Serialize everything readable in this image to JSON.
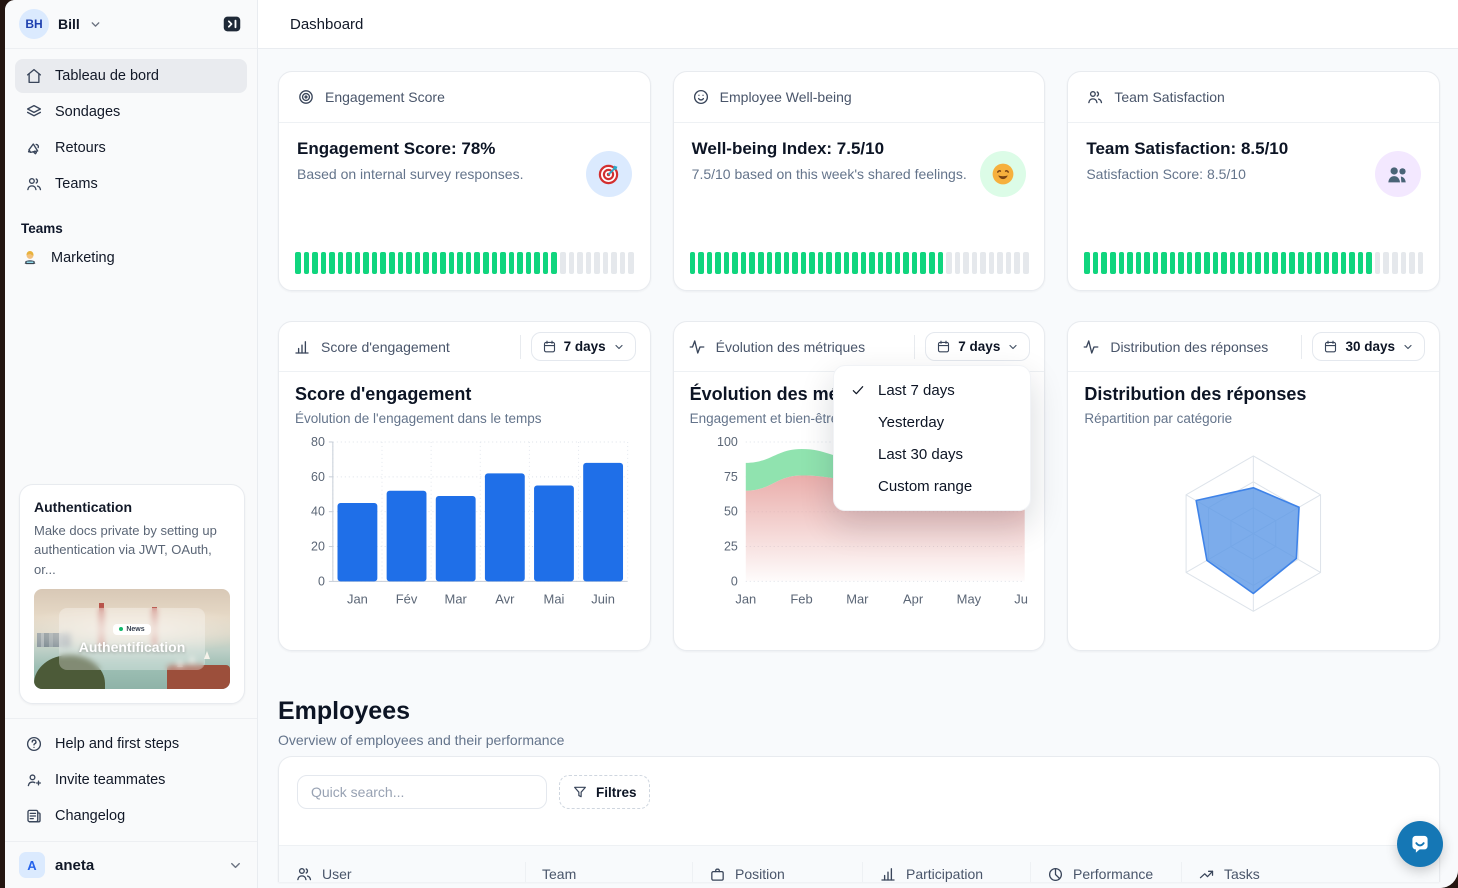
{
  "topbar": {
    "title": "Dashboard"
  },
  "sidebar": {
    "user": {
      "initials": "BH",
      "name": "Bill"
    },
    "nav": [
      {
        "icon": "home-icon",
        "label": "Tableau de bord",
        "active": true
      },
      {
        "icon": "layers-icon",
        "label": "Sondages",
        "active": false
      },
      {
        "icon": "megaphone-icon",
        "label": "Retours",
        "active": false
      },
      {
        "icon": "users-icon",
        "label": "Teams",
        "active": false
      }
    ],
    "section_label": "Teams",
    "teams": [
      {
        "icon": "technologist-emoji",
        "label": "Marketing"
      }
    ],
    "promo": {
      "title": "Authentication",
      "body": "Make docs private by setting up authentication via JWT, OAuth, or...",
      "badge": "News",
      "image_title": "Authentification"
    },
    "footer_nav": [
      {
        "icon": "help-circle-icon",
        "label": "Help and first steps"
      },
      {
        "icon": "user-plus-icon",
        "label": "Invite teammates"
      },
      {
        "icon": "changelog-icon",
        "label": "Changelog"
      }
    ],
    "workspace": {
      "initial": "A",
      "name": "aneta"
    }
  },
  "stat_cards": [
    {
      "icon": "target-icon",
      "label": "Engagement Score",
      "title": "Engagement Score: 78%",
      "subtitle": "Based on internal survey responses.",
      "emoji": "target-emoji",
      "emoji_bg": "#dbeafe",
      "progress_pct": 78
    },
    {
      "icon": "smile-icon",
      "label": "Employee Well-being",
      "title": "Well-being Index: 7.5/10",
      "subtitle": "7.5/10 based on this week's shared feelings.",
      "emoji": "smile-emoji",
      "emoji_bg": "#dcfce7",
      "progress_pct": 75
    },
    {
      "icon": "users-icon",
      "label": "Team Satisfaction",
      "title": "Team Satisfaction: 8.5/10",
      "subtitle": "Satisfaction Score: 8.5/10",
      "emoji": "busts-emoji",
      "emoji_bg": "#f3e8ff",
      "progress_pct": 85
    }
  ],
  "chart_cards": [
    {
      "icon": "column-chart-icon",
      "header_label": "Score d'engagement",
      "range_label": "7 days"
    },
    {
      "icon": "activity-icon",
      "header_label": "Évolution des métriques",
      "range_label": "7 days"
    },
    {
      "icon": "activity-icon",
      "header_label": "Distribution des réponses",
      "range_label": "30 days"
    }
  ],
  "dropdown_menu": {
    "items": [
      {
        "label": "Last 7 days",
        "checked": true
      },
      {
        "label": "Yesterday",
        "checked": false
      },
      {
        "label": "Last 30 days",
        "checked": false
      },
      {
        "label": "Custom range",
        "checked": false
      }
    ]
  },
  "employees": {
    "title": "Employees",
    "subtitle": "Overview of employees and their performance",
    "search_placeholder": "Quick search...",
    "filter_label": "Filtres",
    "columns": [
      {
        "icon": "users-icon",
        "label": "User"
      },
      {
        "icon": "",
        "label": "Team"
      },
      {
        "icon": "briefcase-icon",
        "label": "Position"
      },
      {
        "icon": "column-chart-icon",
        "label": "Participation"
      },
      {
        "icon": "pie-chart-icon",
        "label": "Performance"
      },
      {
        "icon": "trend-up-icon",
        "label": "Tasks"
      }
    ]
  },
  "progress": {
    "segments": 40,
    "fill_color": "#10d57e",
    "empty_color": "#e5e8ec"
  },
  "chart_data": [
    {
      "type": "bar",
      "title": "Score d'engagement",
      "subtitle": "Évolution de l'engagement dans le temps",
      "categories": [
        "Jan",
        "Fév",
        "Mar",
        "Avr",
        "Mai",
        "Juin"
      ],
      "values": [
        45,
        52,
        49,
        62,
        55,
        68
      ],
      "ylim": [
        0,
        80
      ],
      "yticks": [
        0,
        20,
        40,
        60,
        80
      ],
      "bar_color": "#1f6fe8",
      "grid": true,
      "legend": false
    },
    {
      "type": "area",
      "title": "Évolution des métriques",
      "subtitle": "Engagement et bien-être",
      "x": [
        "Jan",
        "Feb",
        "Mar",
        "Apr",
        "May",
        "Jun"
      ],
      "series": [
        {
          "name": "Engagement",
          "color": "#8ae2ab",
          "values": [
            85,
            95,
            88,
            67,
            78,
            84
          ]
        },
        {
          "name": "Bien-être",
          "color": "#e8a7a4",
          "values": [
            65,
            76,
            73,
            61,
            68,
            71
          ]
        }
      ],
      "ylim": [
        0,
        100
      ],
      "yticks": [
        0,
        25,
        50,
        75,
        100
      ],
      "grid": true,
      "legend": false
    },
    {
      "type": "radar",
      "title": "Distribution des réponses",
      "subtitle": "Répartition par catégorie",
      "axes_count": 6,
      "values": [
        0.59,
        0.68,
        0.64,
        0.77,
        0.69,
        0.85
      ],
      "max": 1,
      "fill_color": "#5b97e6",
      "stroke_color": "#3f83e8",
      "grid_levels": 3,
      "legend": false
    }
  ]
}
